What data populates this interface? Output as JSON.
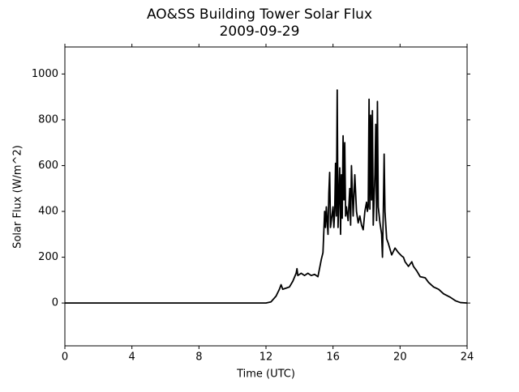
{
  "chart_data": {
    "type": "line",
    "title": "AO&SS Building Tower Solar Flux",
    "subtitle": "2009-09-29",
    "x_label": "Time (UTC)",
    "y_label": "Solar Flux (W/m^2)",
    "xlim": [
      0,
      24
    ],
    "xticks": [
      0,
      4,
      8,
      12,
      16,
      20,
      24
    ],
    "ylim": [
      -187,
      1118
    ],
    "yticks": [
      0,
      200,
      400,
      600,
      800,
      1000
    ],
    "series": [
      {
        "color": "#000000",
        "x": [
          0,
          12,
          12.3,
          12.6,
          12.8,
          12.9,
          13.0,
          13.2,
          13.4,
          13.6,
          13.8,
          13.85,
          13.9,
          14.1,
          14.3,
          14.5,
          14.7,
          14.9,
          15.1,
          15.3,
          15.4,
          15.5,
          15.55,
          15.6,
          15.7,
          15.75,
          15.8,
          15.85,
          15.9,
          16.0,
          16.05,
          16.1,
          16.15,
          16.2,
          16.25,
          16.3,
          16.35,
          16.4,
          16.45,
          16.5,
          16.55,
          16.6,
          16.65,
          16.7,
          16.75,
          16.8,
          16.9,
          17.0,
          17.05,
          17.1,
          17.2,
          17.3,
          17.4,
          17.5,
          17.6,
          17.7,
          17.8,
          17.9,
          18.0,
          18.05,
          18.1,
          18.15,
          18.2,
          18.25,
          18.3,
          18.35,
          18.4,
          18.5,
          18.55,
          18.6,
          18.65,
          18.7,
          18.8,
          18.9,
          18.95,
          19.0,
          19.05,
          19.1,
          19.2,
          19.3,
          19.5,
          19.7,
          19.9,
          20.1,
          20.2,
          20.3,
          20.5,
          20.7,
          20.8,
          21.0,
          21.2,
          21.5,
          21.7,
          22.0,
          22.3,
          22.6,
          23.0,
          23.3,
          23.6,
          24
        ],
        "values": [
          0,
          0,
          5,
          30,
          60,
          80,
          60,
          65,
          70,
          95,
          130,
          150,
          120,
          130,
          120,
          130,
          120,
          125,
          115,
          190,
          220,
          400,
          330,
          420,
          300,
          480,
          570,
          330,
          360,
          420,
          330,
          400,
          610,
          380,
          930,
          330,
          460,
          590,
          300,
          560,
          370,
          730,
          450,
          700,
          380,
          420,
          360,
          500,
          340,
          600,
          380,
          560,
          400,
          350,
          380,
          340,
          320,
          400,
          440,
          400,
          420,
          890,
          410,
          820,
          450,
          840,
          340,
          560,
          780,
          360,
          880,
          420,
          350,
          300,
          200,
          400,
          650,
          400,
          280,
          260,
          210,
          240,
          220,
          205,
          200,
          180,
          160,
          180,
          160,
          140,
          115,
          110,
          90,
          70,
          60,
          40,
          25,
          10,
          2,
          0
        ]
      }
    ]
  }
}
